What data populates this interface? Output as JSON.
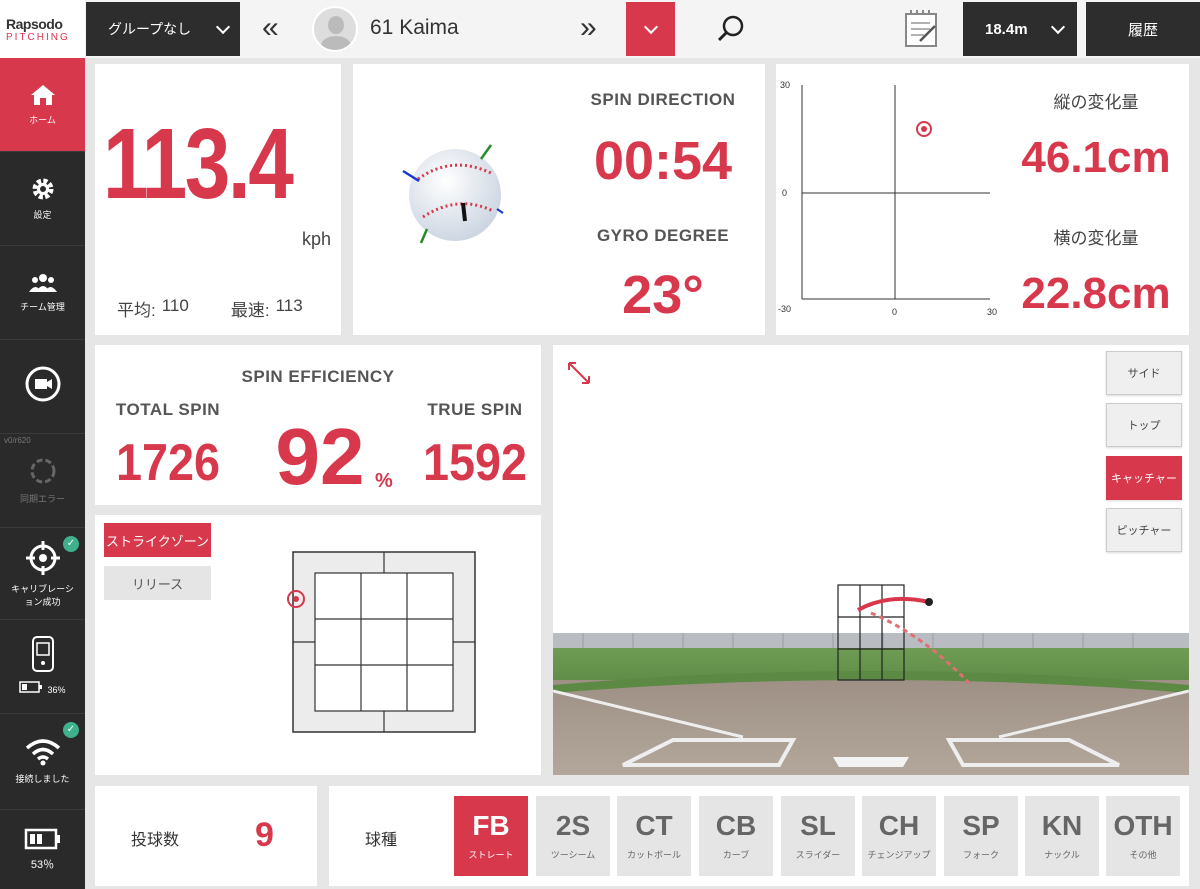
{
  "app": {
    "logo_top": "Rapsodo",
    "logo_bottom": "PITCHING"
  },
  "header": {
    "group_select": "グループなし",
    "player_name": "61 Kaima",
    "distance_select": "18.4m",
    "history_button": "履歴"
  },
  "sidebar": {
    "home": "ホーム",
    "settings": "設定",
    "team": "チーム管理",
    "version": "v0/r620",
    "sync": "同期エラー",
    "calibration": "キャリブレーション成功",
    "device_battery": "36%",
    "connection": "接続しました",
    "battery": "53％"
  },
  "speed": {
    "value": "113.4",
    "unit": "kph",
    "avg_label": "平均:",
    "avg_value": "110",
    "max_label": "最速:",
    "max_value": "113"
  },
  "spin": {
    "direction_label": "SPIN DIRECTION",
    "direction_value": "00:54",
    "gyro_label": "GYRO DEGREE",
    "gyro_value": "23°"
  },
  "break_chart": {
    "y_max_label": "30",
    "y_zero_label": "0",
    "y_min_label": "-30",
    "x_zero_label": "0",
    "x_max_label": "30",
    "vertical_label": "縦の変化量",
    "vertical_value": "46.1cm",
    "horizontal_label": "横の変化量",
    "horizontal_value": "22.8cm"
  },
  "efficiency": {
    "title": "SPIN EFFICIENCY",
    "total_label": "TOTAL SPIN",
    "total_value": "1726",
    "percent_value": "92",
    "percent_sign": "%",
    "true_label": "TRUE SPIN",
    "true_value": "1592"
  },
  "zone": {
    "strike_zone_tab": "ストライクゾーン",
    "release_tab": "リリース"
  },
  "view_buttons": {
    "side": "サイド",
    "top": "トップ",
    "catcher": "キャッチャー",
    "pitcher": "ピッチャー"
  },
  "footer": {
    "pitch_count_label": "投球数",
    "pitch_count_value": "9",
    "pitch_type_label": "球種",
    "pitch_types": [
      {
        "code": "FB",
        "name": "ストレート"
      },
      {
        "code": "2S",
        "name": "ツーシーム"
      },
      {
        "code": "CT",
        "name": "カットボール"
      },
      {
        "code": "CB",
        "name": "カーブ"
      },
      {
        "code": "SL",
        "name": "スライダー"
      },
      {
        "code": "CH",
        "name": "チェンジアップ"
      },
      {
        "code": "SP",
        "name": "フォーク"
      },
      {
        "code": "KN",
        "name": "ナックル"
      },
      {
        "code": "OTH",
        "name": "その他"
      }
    ]
  },
  "colors": {
    "accent": "#d8384c",
    "dark": "#2d2d2d",
    "success": "#3fb08c"
  }
}
